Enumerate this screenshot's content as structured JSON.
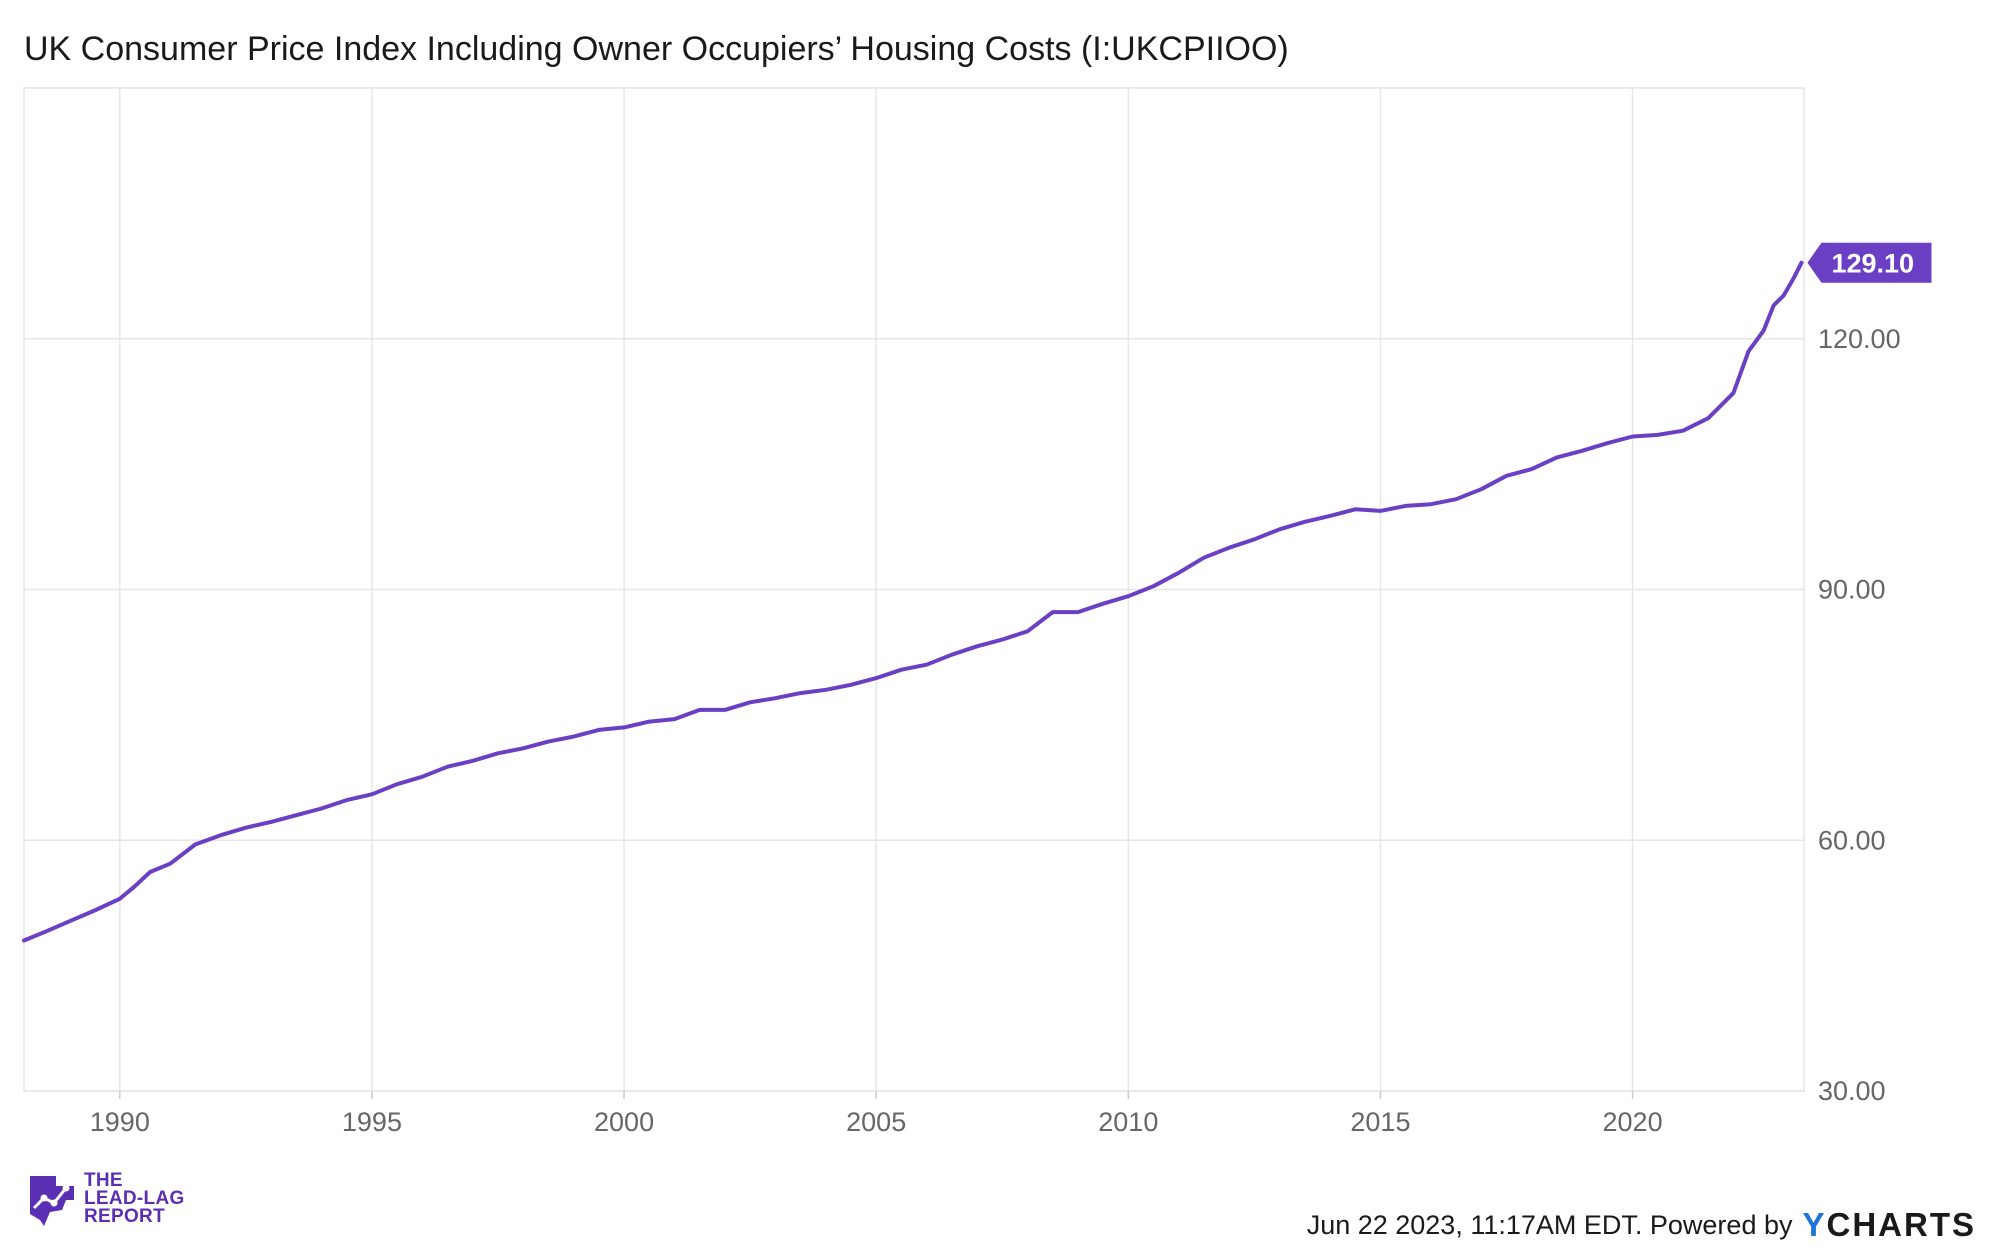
{
  "title": "UK Consumer Price Index Including Owner Occupiers’ Housing Costs (I:UKCPIIOO)",
  "footer": {
    "timestamp_text": "Jun 22 2023, 11:17AM EDT.  Powered by",
    "brand_y": "Y",
    "brand_rest": "CHARTS"
  },
  "logo": {
    "line1": "THE",
    "line2": "LEAD-LAG",
    "line3": "REPORT"
  },
  "colors": {
    "line": "#6a3fc4",
    "label_bg": "#6a3fc4",
    "grid": "#e6e6e6",
    "brand_y": "#1e73d8"
  },
  "chart_data": {
    "type": "line",
    "title": "UK Consumer Price Index Including Owner Occupiers’ Housing Costs (I:UKCPIIOO)",
    "xlabel": "",
    "ylabel": "",
    "xlim": [
      1988.1,
      2023.4
    ],
    "ylim": [
      30,
      150
    ],
    "y_ticks": [
      "30.00",
      "60.00",
      "90.00",
      "120.00"
    ],
    "y_tick_values": [
      30,
      60,
      90,
      120
    ],
    "x_ticks": [
      "1990",
      "1995",
      "2000",
      "2005",
      "2010",
      "2015",
      "2020"
    ],
    "x_tick_values": [
      1990,
      1995,
      2000,
      2005,
      2010,
      2015,
      2020
    ],
    "grid": true,
    "last_value_label": "129.10",
    "series": [
      {
        "name": "I:UKCPIIOO",
        "points": [
          [
            1988.1,
            48.0
          ],
          [
            1988.5,
            49.0
          ],
          [
            1989.0,
            50.3
          ],
          [
            1989.5,
            51.6
          ],
          [
            1990.0,
            53.0
          ],
          [
            1990.3,
            54.5
          ],
          [
            1990.6,
            56.2
          ],
          [
            1991.0,
            57.2
          ],
          [
            1991.5,
            59.5
          ],
          [
            1992.0,
            60.6
          ],
          [
            1992.5,
            61.5
          ],
          [
            1993.0,
            62.2
          ],
          [
            1993.5,
            63.0
          ],
          [
            1994.0,
            63.8
          ],
          [
            1994.5,
            64.8
          ],
          [
            1995.0,
            65.5
          ],
          [
            1995.5,
            66.7
          ],
          [
            1996.0,
            67.6
          ],
          [
            1996.5,
            68.8
          ],
          [
            1997.0,
            69.5
          ],
          [
            1997.5,
            70.4
          ],
          [
            1998.0,
            71.0
          ],
          [
            1998.5,
            71.8
          ],
          [
            1999.0,
            72.4
          ],
          [
            1999.5,
            73.2
          ],
          [
            2000.0,
            73.5
          ],
          [
            2000.5,
            74.2
          ],
          [
            2001.0,
            74.5
          ],
          [
            2001.5,
            75.6
          ],
          [
            2002.0,
            75.6
          ],
          [
            2002.5,
            76.5
          ],
          [
            2003.0,
            77.0
          ],
          [
            2003.5,
            77.6
          ],
          [
            2004.0,
            78.0
          ],
          [
            2004.5,
            78.6
          ],
          [
            2005.0,
            79.4
          ],
          [
            2005.5,
            80.4
          ],
          [
            2006.0,
            81.0
          ],
          [
            2006.5,
            82.2
          ],
          [
            2007.0,
            83.2
          ],
          [
            2007.5,
            84.0
          ],
          [
            2008.0,
            85.0
          ],
          [
            2008.5,
            87.3
          ],
          [
            2009.0,
            87.3
          ],
          [
            2009.5,
            88.3
          ],
          [
            2010.0,
            89.2
          ],
          [
            2010.5,
            90.4
          ],
          [
            2011.0,
            92.0
          ],
          [
            2011.5,
            93.8
          ],
          [
            2012.0,
            95.0
          ],
          [
            2012.5,
            96.0
          ],
          [
            2013.0,
            97.2
          ],
          [
            2013.5,
            98.1
          ],
          [
            2014.0,
            98.8
          ],
          [
            2014.5,
            99.6
          ],
          [
            2015.0,
            99.4
          ],
          [
            2015.5,
            100.0
          ],
          [
            2016.0,
            100.2
          ],
          [
            2016.5,
            100.8
          ],
          [
            2017.0,
            102.0
          ],
          [
            2017.5,
            103.6
          ],
          [
            2018.0,
            104.4
          ],
          [
            2018.5,
            105.8
          ],
          [
            2019.0,
            106.6
          ],
          [
            2019.5,
            107.5
          ],
          [
            2020.0,
            108.3
          ],
          [
            2020.5,
            108.5
          ],
          [
            2021.0,
            109.0
          ],
          [
            2021.5,
            110.5
          ],
          [
            2022.0,
            113.5
          ],
          [
            2022.3,
            118.5
          ],
          [
            2022.6,
            121.0
          ],
          [
            2022.8,
            124.0
          ],
          [
            2023.0,
            125.2
          ],
          [
            2023.2,
            127.3
          ],
          [
            2023.35,
            129.1
          ]
        ]
      }
    ]
  }
}
